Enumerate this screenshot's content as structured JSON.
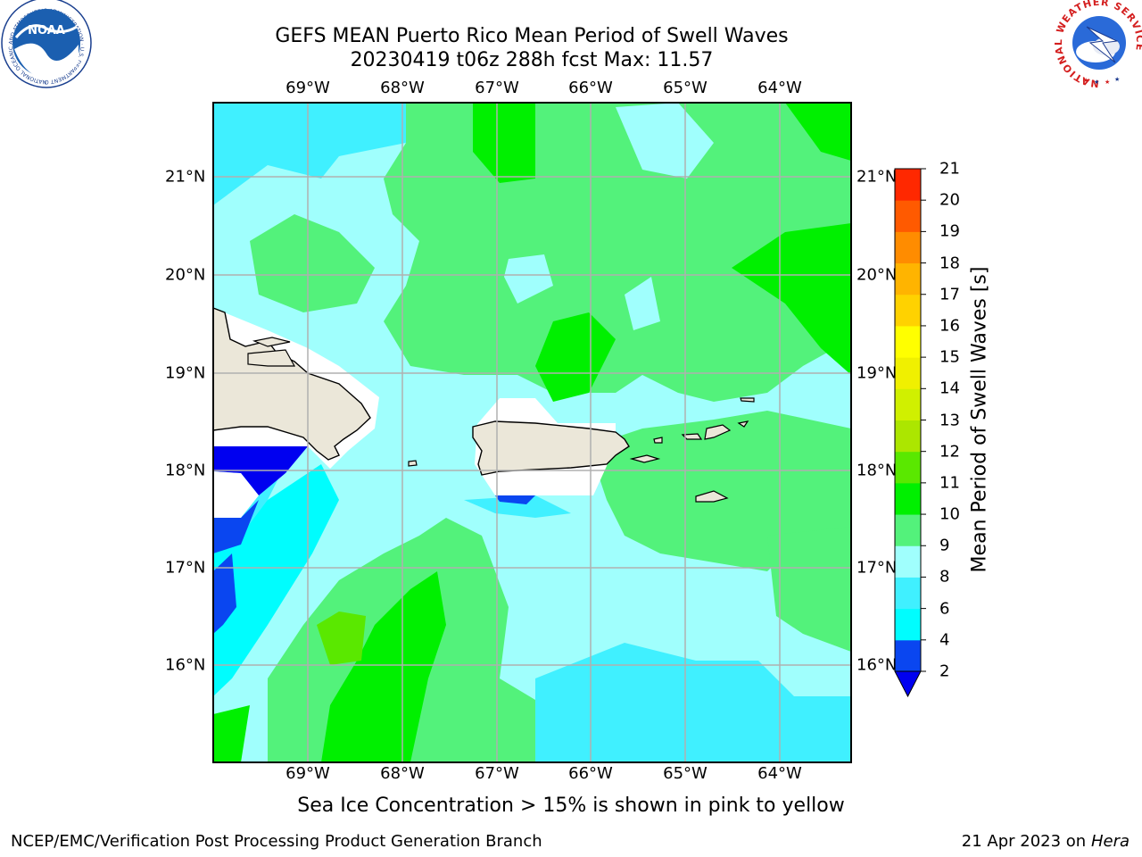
{
  "title_line1": "GEFS MEAN Puerto Rico Mean Period of Swell Waves",
  "title_line2": "20230419 t06z 288h fcst   Max: 11.57",
  "longitude_labels": [
    "69°W",
    "68°W",
    "67°W",
    "66°W",
    "65°W",
    "64°W"
  ],
  "latitude_labels": [
    "21°N",
    "20°N",
    "19°N",
    "18°N",
    "17°N",
    "16°N"
  ],
  "colorbar": {
    "label": "Mean Period of Swell Waves [s]",
    "ticks": [
      "2",
      "4",
      "6",
      "8",
      "9",
      "10",
      "11",
      "12",
      "13",
      "14",
      "15",
      "16",
      "17",
      "18",
      "19",
      "20",
      "21"
    ],
    "colors": [
      "#0a46f0",
      "#00fdfe",
      "#40f0ff",
      "#a0fffd",
      "#53f27b",
      "#00f000",
      "#5ae800",
      "#ace600",
      "#d0f000",
      "#f0f000",
      "#ffff00",
      "#ffd200",
      "#ffb400",
      "#ff8c00",
      "#ff5a00",
      "#ff2800",
      "#ff0000"
    ],
    "extend": "min",
    "under_color": "#0000f0"
  },
  "note": "Sea Ice Concentration > 15% is shown in pink to yellow",
  "footer_left": "NCEP/EMC/Verification Post Processing Product Generation Branch",
  "footer_date": "21 Apr 2023 on ",
  "footer_machine": "Hera",
  "logos": {
    "noaa_text": "NOAA",
    "noaa_ring": "NATIONAL OCEANIC AND ATMOSPHERIC ADMINISTRATION · U.S. DEPARTMENT OF COMMERCE",
    "nws_ring": "NATIONAL WEATHER SERVICE"
  }
}
